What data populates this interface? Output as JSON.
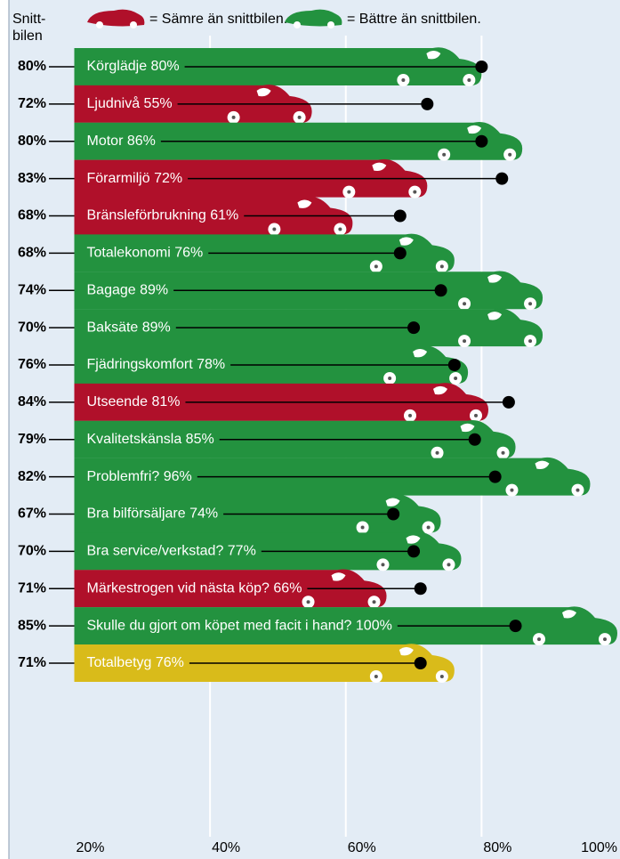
{
  "chart_data": {
    "type": "hbar",
    "legend": [
      {
        "label": "= Sämre än snittbilen.",
        "color": "#b0102a"
      },
      {
        "label": "= Bättre än snittbilen.",
        "color": "#23923f"
      }
    ],
    "average_header": [
      "Snitt-",
      "bilen"
    ],
    "values": [
      80,
      55,
      86,
      72,
      61,
      76,
      89,
      89,
      78,
      81,
      85,
      96,
      74,
      77,
      66,
      100,
      76
    ],
    "value_labels": [
      "Körglädje 80%",
      "Ljudnivå 55%",
      "Motor 86%",
      "Förarmiljö 72%",
      "Bränsleförbrukning 61%",
      "Totalekonomi 76%",
      "Bagage 89%",
      "Baksäte 89%",
      "Fjädringskomfort 78%",
      "Utseende 81%",
      "Kvalitetskänsla 85%",
      "Problemfri? 96%",
      "Bra bilförsäljare 74%",
      "Bra service/verkstad? 77%",
      "Märkestrogen vid nästa köp? 66%",
      "Skulle du gjort om köpet med facit i hand? 100%",
      "Totalbetyg 76%"
    ],
    "colors": [
      "#23923f",
      "#b0102a",
      "#23923f",
      "#b0102a",
      "#b0102a",
      "#23923f",
      "#23923f",
      "#23923f",
      "#23923f",
      "#b0102a",
      "#23923f",
      "#23923f",
      "#23923f",
      "#23923f",
      "#b0102a",
      "#23923f",
      "#d9bb1a"
    ],
    "averages": [
      80,
      72,
      80,
      83,
      68,
      68,
      74,
      70,
      76,
      84,
      79,
      82,
      67,
      70,
      71,
      85,
      71
    ],
    "average_labels": [
      "80%",
      "72%",
      "80%",
      "83%",
      "68%",
      "68%",
      "74%",
      "70%",
      "76%",
      "84%",
      "79%",
      "82%",
      "67%",
      "70%",
      "71%",
      "85%",
      "71%"
    ],
    "average_color": "#000000",
    "xlim": [
      20,
      100
    ],
    "xticks": [
      {
        "value": 20,
        "label": "20%"
      },
      {
        "value": 40,
        "label": "40%"
      },
      {
        "value": 60,
        "label": "60%"
      },
      {
        "value": 80,
        "label": "80%"
      },
      {
        "value": 100,
        "label": "100%"
      }
    ],
    "grid": true
  }
}
